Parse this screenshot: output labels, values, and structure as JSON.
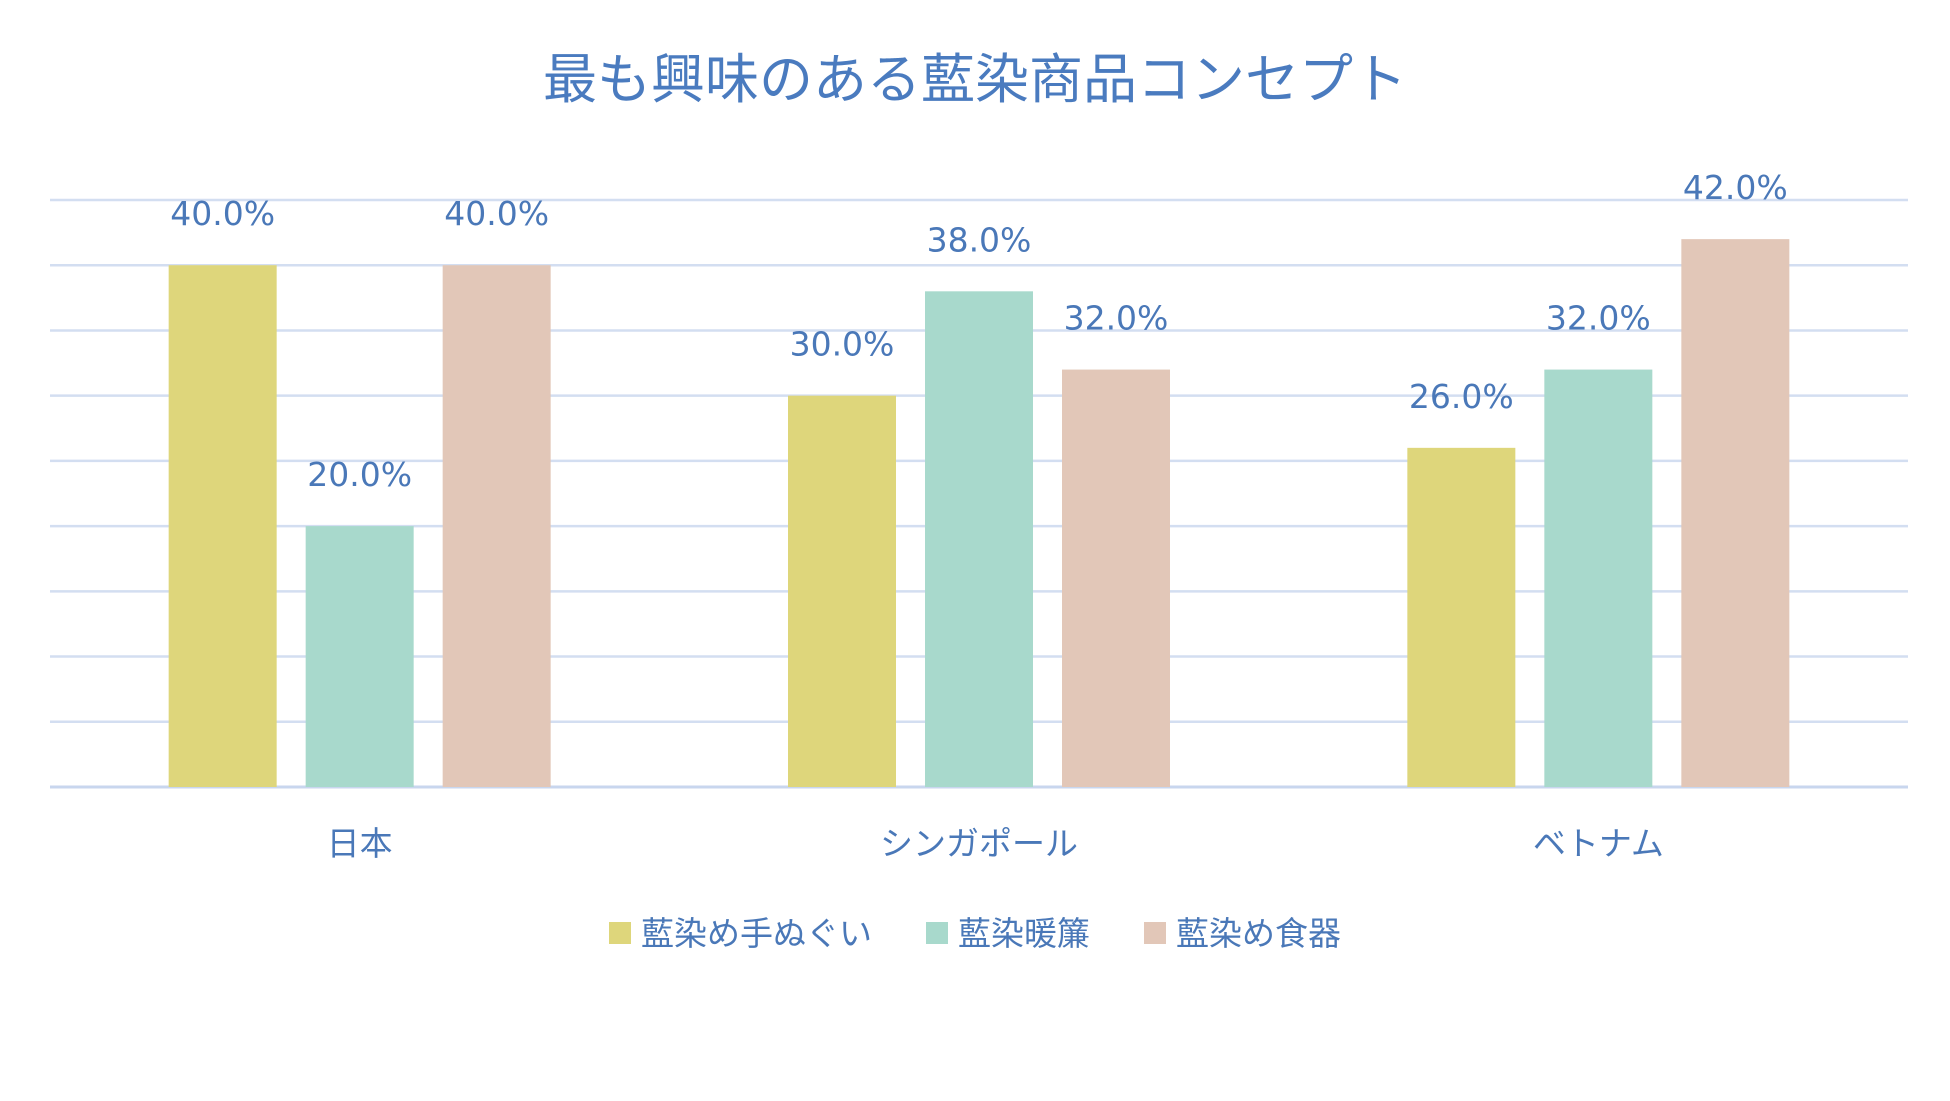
{
  "chart_data": {
    "type": "bar",
    "title": "最も興味のある藍染商品コンセプト",
    "categories": [
      "日本",
      "シンガポール",
      "ベトナム"
    ],
    "series": [
      {
        "name": "藍染め手ぬぐい",
        "values": [
          40.0,
          30.0,
          26.0
        ],
        "labels": [
          "40.0%",
          "30.0%",
          "26.0%"
        ],
        "color": "#ded67b"
      },
      {
        "name": "藍染暖簾",
        "values": [
          20.0,
          38.0,
          32.0
        ],
        "labels": [
          "20.0%",
          "38.0%",
          "32.0%"
        ],
        "color": "#a8d9cc"
      },
      {
        "name": "藍染め食器",
        "values": [
          40.0,
          32.0,
          42.0
        ],
        "labels": [
          "40.0%",
          "32.0%",
          "42.0%"
        ],
        "color": "#e2c7b8"
      }
    ],
    "ylim": [
      0,
      45
    ],
    "grid_step": 5,
    "grid": true,
    "legend": "bottom",
    "xlabel": "",
    "ylabel": ""
  }
}
